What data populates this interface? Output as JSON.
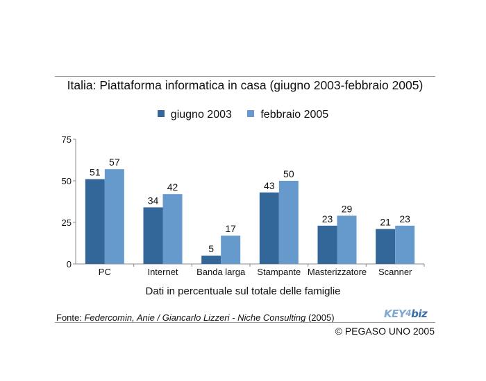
{
  "title": "Italia: Piattaforma informatica in casa (giugno 2003-febbraio 2005)",
  "subtitle": "Dati in percentuale sul totale delle famiglie",
  "source": {
    "label": "Fonte: ",
    "detail": "Federcomin, Anie / Giancarlo Lizzeri - Niche Consulting",
    "year": " (2005)"
  },
  "logo": {
    "key": "KEY",
    "num": "4",
    "biz": "biz"
  },
  "copyright": "© PEGASO UNO 2005",
  "colors": {
    "giugno_2003": "#336699",
    "febbraio_2005": "#6699cc"
  },
  "chart_data": {
    "type": "bar",
    "categories": [
      "PC",
      "Internet",
      "Banda larga",
      "Stampante",
      "Masterizzatore",
      "Scanner"
    ],
    "series": [
      {
        "name": "giugno 2003",
        "values": [
          51,
          34,
          5,
          43,
          23,
          21
        ]
      },
      {
        "name": "febbraio 2005",
        "values": [
          57,
          42,
          17,
          50,
          29,
          23
        ]
      }
    ],
    "ylim": [
      0,
      75
    ],
    "yticks": [
      0,
      25,
      50,
      75
    ],
    "legend_position": "top",
    "grid": false
  }
}
